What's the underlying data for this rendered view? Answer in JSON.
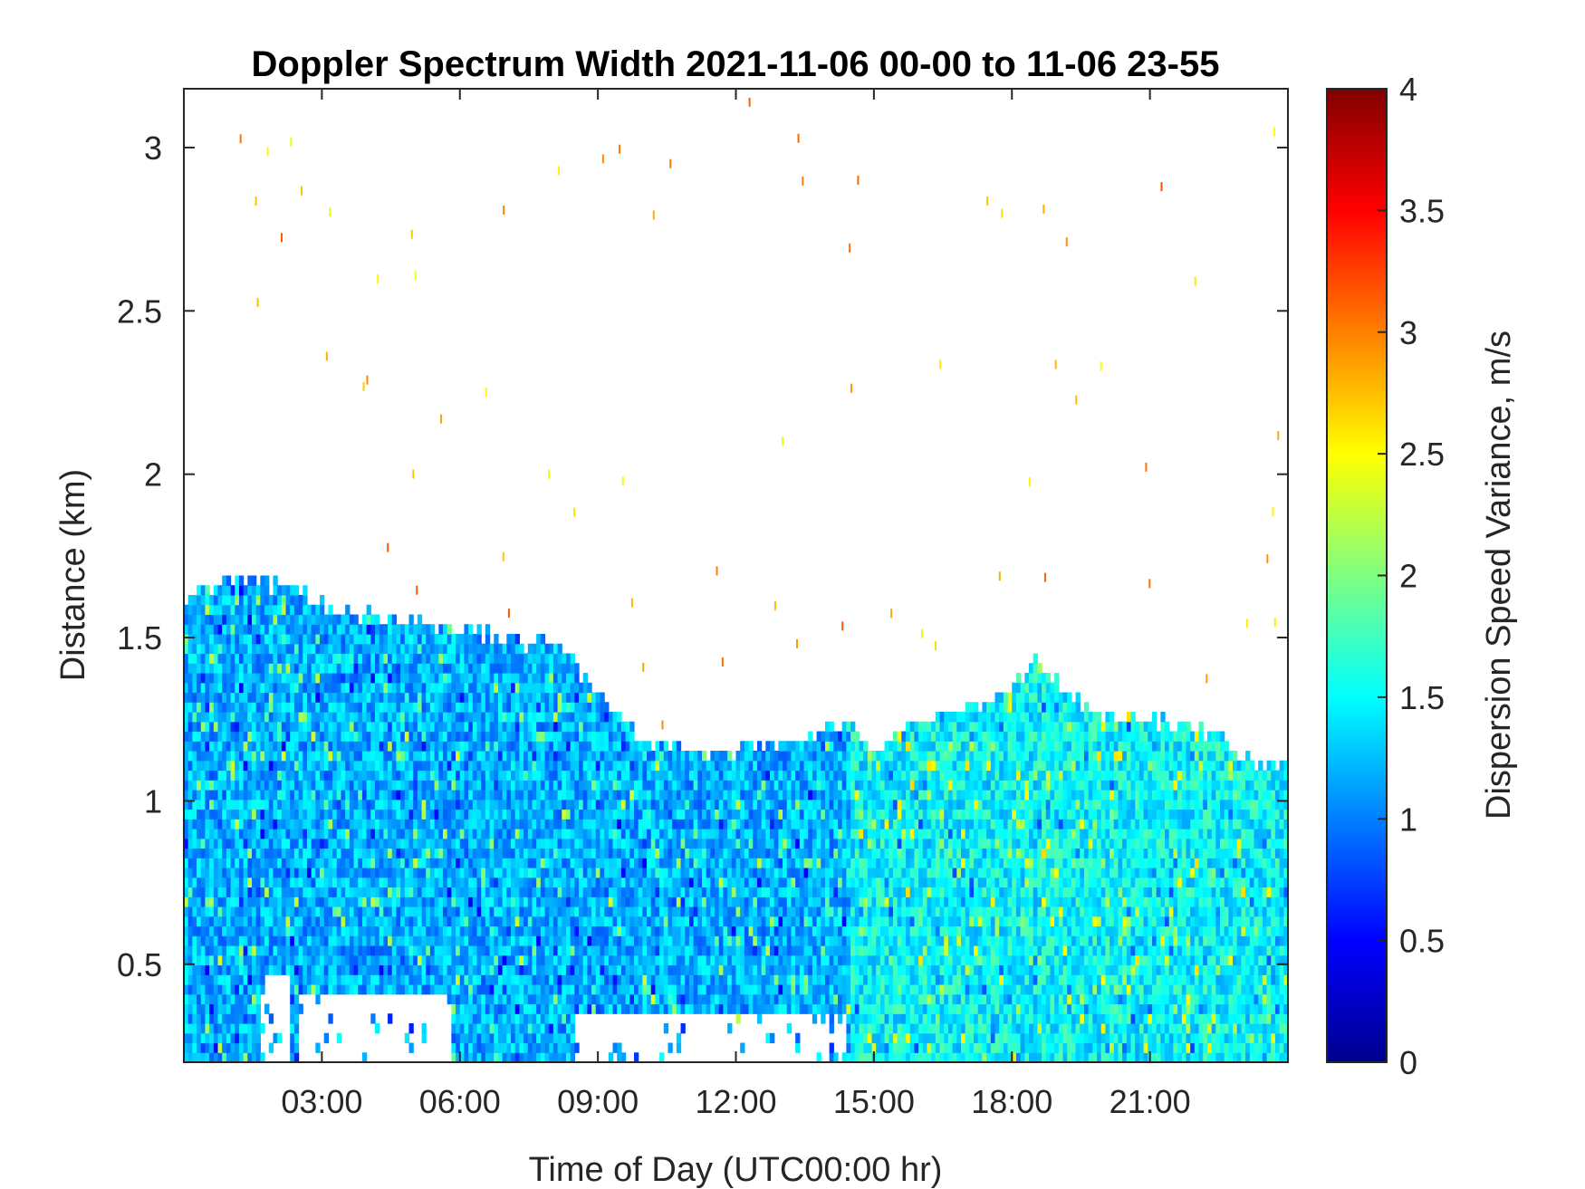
{
  "chart_data": {
    "type": "heatmap",
    "title": "Doppler Spectrum Width 2021-11-06 00-00 to 11-06 23-55",
    "xlabel": "Time of Day (UTC00:00 hr)",
    "ylabel": "Distance (km)",
    "xlim": [
      0,
      24
    ],
    "ylim": [
      0.2,
      3.18
    ],
    "x_ticks": [
      {
        "value": 3,
        "label": "03:00"
      },
      {
        "value": 6,
        "label": "06:00"
      },
      {
        "value": 9,
        "label": "09:00"
      },
      {
        "value": 12,
        "label": "12:00"
      },
      {
        "value": 15,
        "label": "15:00"
      },
      {
        "value": 18,
        "label": "18:00"
      },
      {
        "value": 21,
        "label": "21:00"
      }
    ],
    "y_ticks": [
      {
        "value": 0.5,
        "label": "0.5"
      },
      {
        "value": 1,
        "label": "1"
      },
      {
        "value": 1.5,
        "label": "1.5"
      },
      {
        "value": 2,
        "label": "2"
      },
      {
        "value": 2.5,
        "label": "2.5"
      },
      {
        "value": 3,
        "label": "3"
      }
    ],
    "colorbar": {
      "label": "Dispersion Speed Variance, m/s",
      "range": [
        0,
        4
      ],
      "colormap": "jet",
      "ticks": [
        {
          "value": 0,
          "label": "0"
        },
        {
          "value": 0.5,
          "label": "0.5"
        },
        {
          "value": 1,
          "label": "1"
        },
        {
          "value": 1.5,
          "label": "1.5"
        },
        {
          "value": 2,
          "label": "2"
        },
        {
          "value": 2.5,
          "label": "2.5"
        },
        {
          "value": 3,
          "label": "3"
        },
        {
          "value": 3.5,
          "label": "3.5"
        },
        {
          "value": 4,
          "label": "4"
        }
      ]
    },
    "top_boundary_km": [
      [
        0.0,
        1.62
      ],
      [
        0.5,
        1.65
      ],
      [
        1.0,
        1.68
      ],
      [
        1.5,
        1.68
      ],
      [
        2.0,
        1.66
      ],
      [
        2.5,
        1.65
      ],
      [
        3.0,
        1.6
      ],
      [
        3.5,
        1.58
      ],
      [
        4.0,
        1.57
      ],
      [
        4.5,
        1.56
      ],
      [
        5.0,
        1.55
      ],
      [
        6.0,
        1.52
      ],
      [
        7.0,
        1.5
      ],
      [
        7.5,
        1.48
      ],
      [
        8.0,
        1.5
      ],
      [
        8.3,
        1.46
      ],
      [
        9.0,
        1.33
      ],
      [
        9.5,
        1.25
      ],
      [
        10.0,
        1.18
      ],
      [
        11.0,
        1.16
      ],
      [
        12.0,
        1.16
      ],
      [
        13.0,
        1.17
      ],
      [
        13.5,
        1.17
      ],
      [
        14.0,
        1.22
      ],
      [
        14.5,
        1.24
      ],
      [
        15.0,
        1.14
      ],
      [
        15.5,
        1.2
      ],
      [
        16.0,
        1.24
      ],
      [
        16.5,
        1.28
      ],
      [
        17.0,
        1.3
      ],
      [
        17.5,
        1.3
      ],
      [
        18.0,
        1.34
      ],
      [
        18.3,
        1.4
      ],
      [
        18.6,
        1.44
      ],
      [
        19.0,
        1.36
      ],
      [
        19.5,
        1.3
      ],
      [
        20.0,
        1.27
      ],
      [
        20.5,
        1.25
      ],
      [
        21.0,
        1.25
      ],
      [
        21.5,
        1.23
      ],
      [
        22.0,
        1.22
      ],
      [
        22.5,
        1.2
      ],
      [
        23.0,
        1.13
      ],
      [
        23.5,
        1.12
      ],
      [
        24.0,
        1.12
      ]
    ],
    "low_gap_regions": [
      {
        "time_hr": [
          1.7,
          2.3
        ],
        "distance_km": [
          0.2,
          0.48
        ]
      },
      {
        "time_hr": [
          2.5,
          5.8
        ],
        "distance_km": [
          0.2,
          0.42
        ]
      },
      {
        "time_hr": [
          8.5,
          14.4
        ],
        "distance_km": [
          0.2,
          0.36
        ]
      }
    ],
    "typical_value_m_s": {
      "before_14.5h": 1.2,
      "after_14.5h": 1.5
    }
  }
}
